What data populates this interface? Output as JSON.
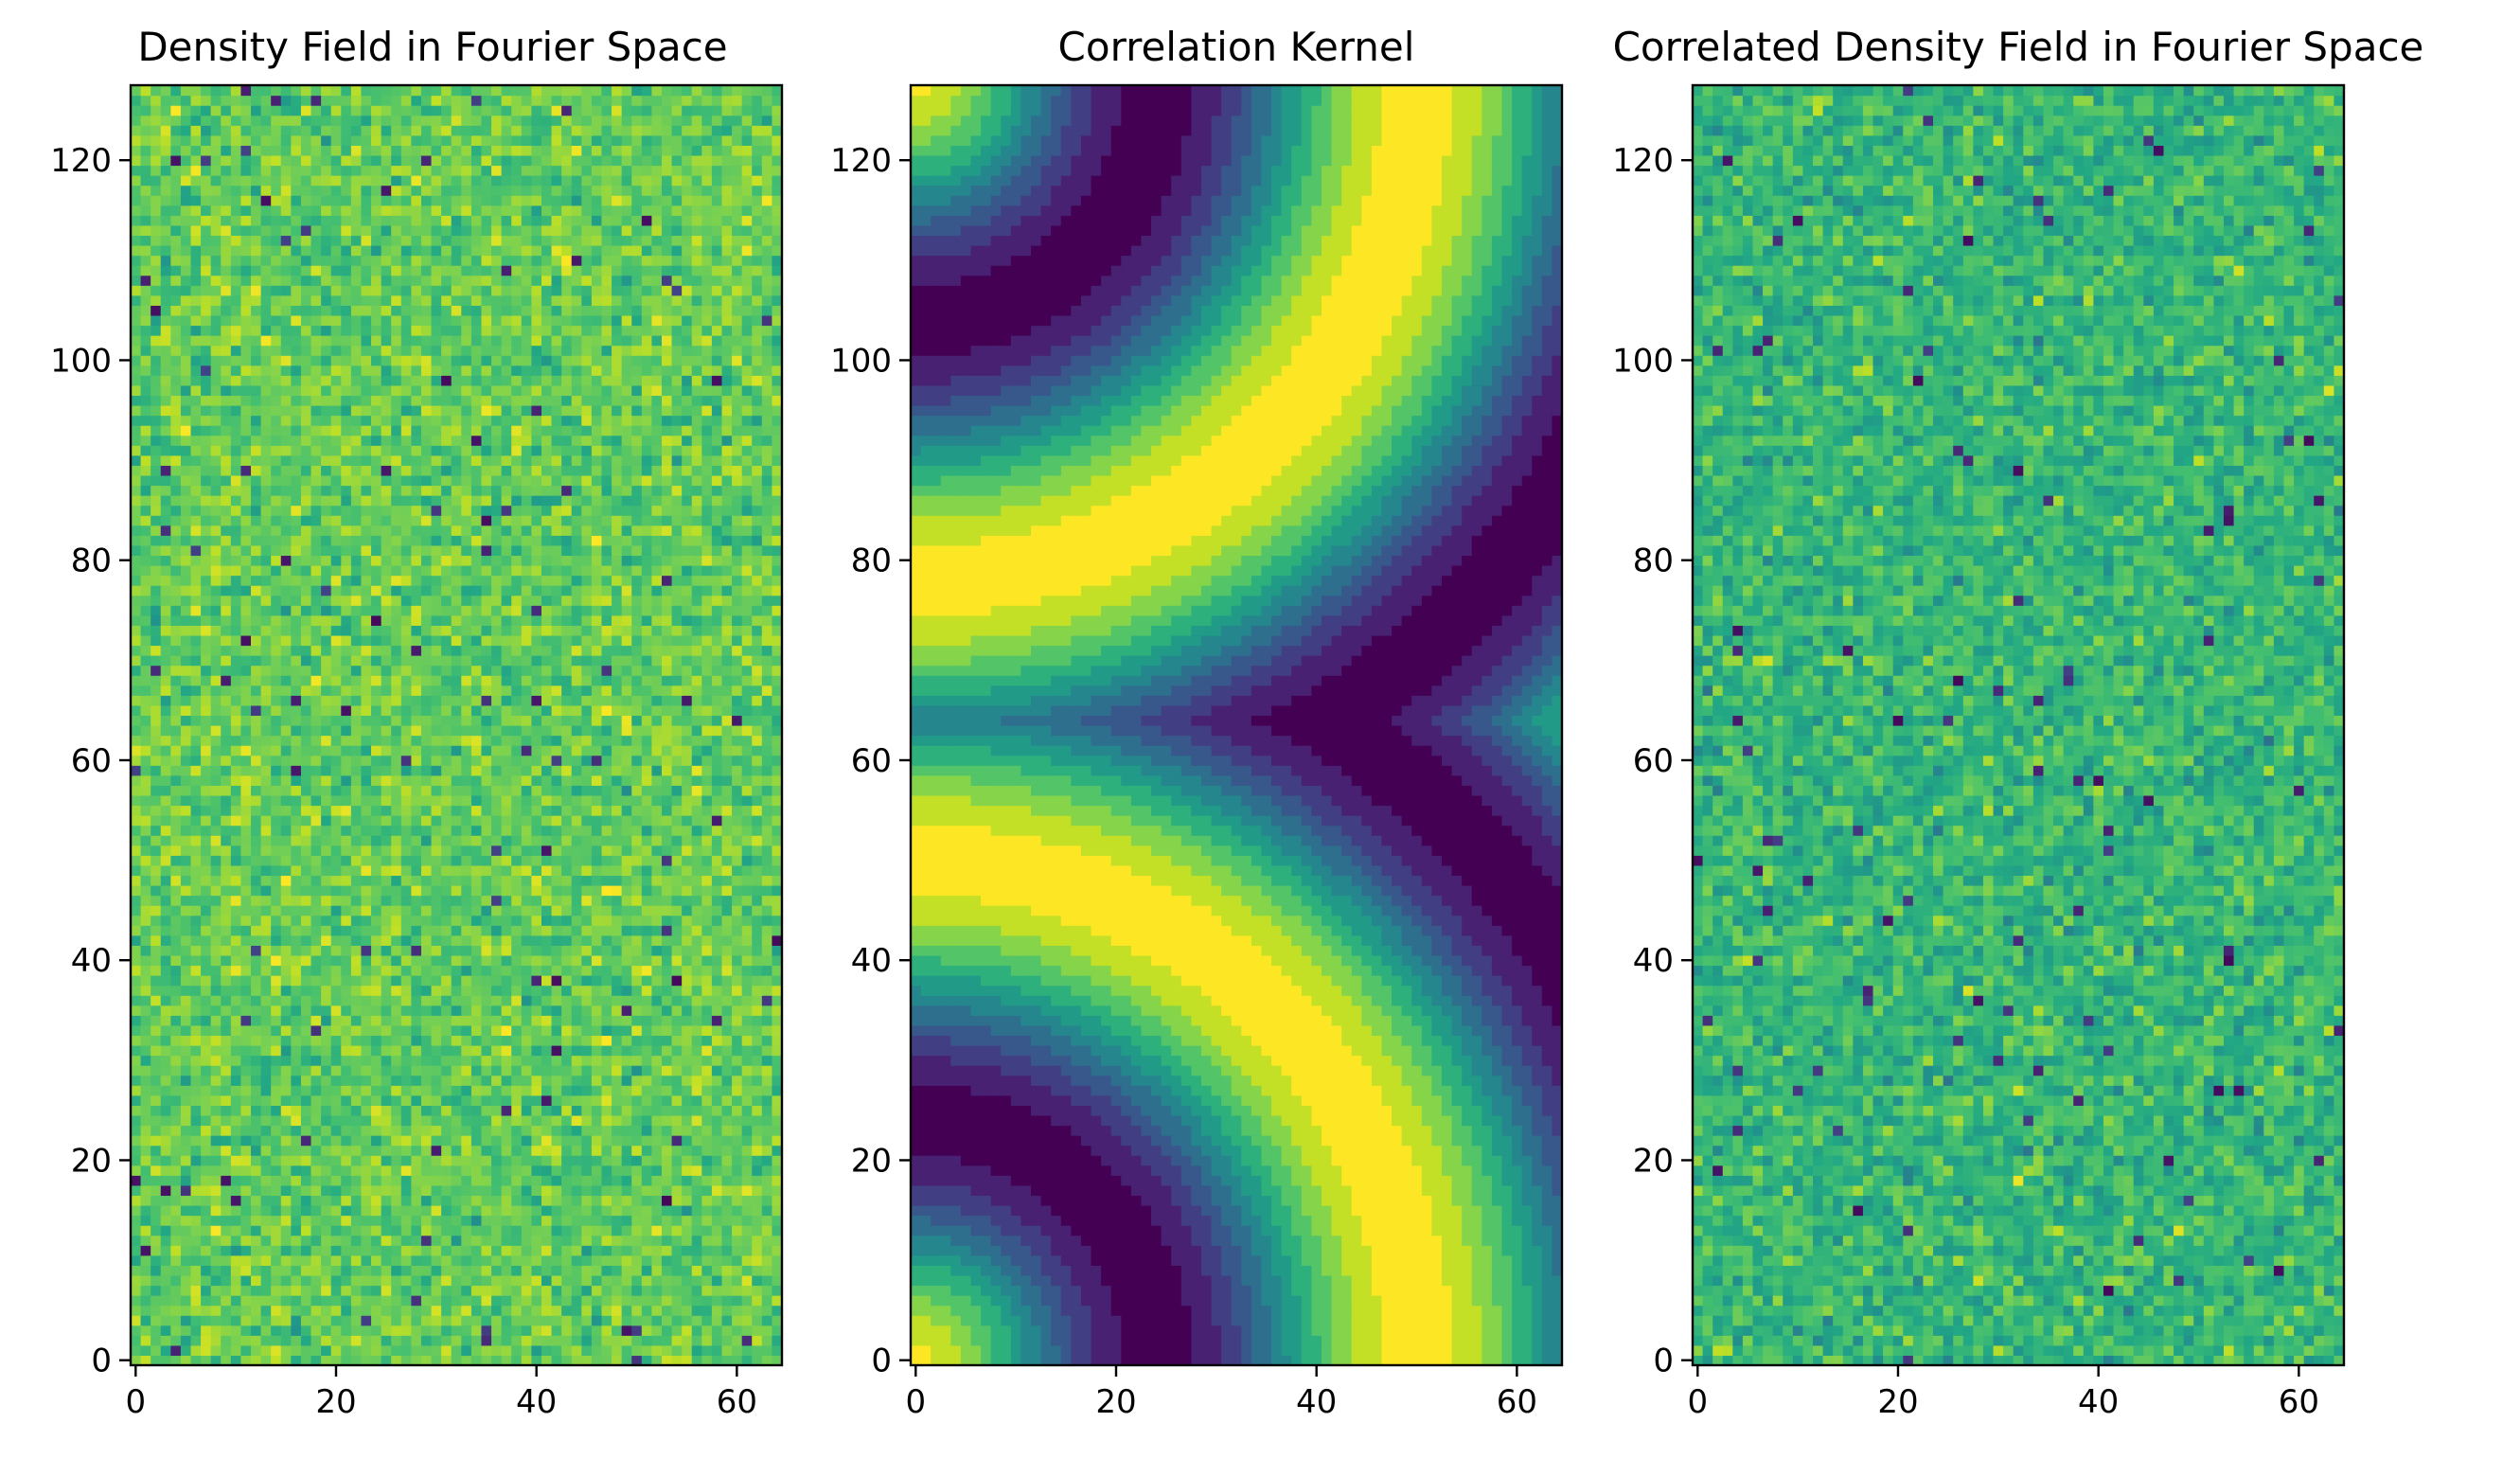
{
  "chart_data": [
    {
      "type": "heatmap",
      "title": "Density Field in Fourier Space",
      "xlabel": "",
      "ylabel": "",
      "shape": [
        128,
        65
      ],
      "xlim": [
        -0.5,
        64.5
      ],
      "ylim": [
        -0.5,
        127.5
      ],
      "x_ticks": [
        0,
        20,
        40,
        60
      ],
      "y_ticks": [
        0,
        20,
        40,
        60,
        80,
        100,
        120
      ],
      "origin": "lower",
      "colormap": "viridis",
      "pattern": "random noise, mostly green-yellow (normalized values ~0.55–0.95) with sparse dark-purple outlier pixels"
    },
    {
      "type": "heatmap",
      "title": "Correlation Kernel",
      "xlabel": "",
      "ylabel": "",
      "shape": [
        128,
        65
      ],
      "xlim": [
        -0.5,
        64.5
      ],
      "ylim": [
        -0.5,
        127.5
      ],
      "x_ticks": [
        0,
        20,
        40,
        60
      ],
      "y_ticks": [
        0,
        20,
        40,
        60,
        80,
        100,
        120
      ],
      "origin": "lower",
      "colormap": "viridis",
      "color_levels": 12,
      "pattern": "quantized periodic function of radial wavenumber k = sqrt(kx^2 + ky^2) with ky wrapped (FFT frequency layout); rings centered at (0,0) and (0,128)"
    },
    {
      "type": "heatmap",
      "title": "Correlated Density Field in Fourier Space",
      "xlabel": "",
      "ylabel": "",
      "shape": [
        128,
        65
      ],
      "xlim": [
        -0.5,
        64.5
      ],
      "ylim": [
        -0.5,
        127.5
      ],
      "x_ticks": [
        0,
        20,
        40,
        60
      ],
      "y_ticks": [
        0,
        20,
        40,
        60,
        80,
        100,
        120
      ],
      "origin": "lower",
      "colormap": "viridis",
      "pattern": "random noise, slightly darker green-teal than the first panel (normalized values ~0.45–0.85) with sparse dark outlier pixels"
    }
  ]
}
